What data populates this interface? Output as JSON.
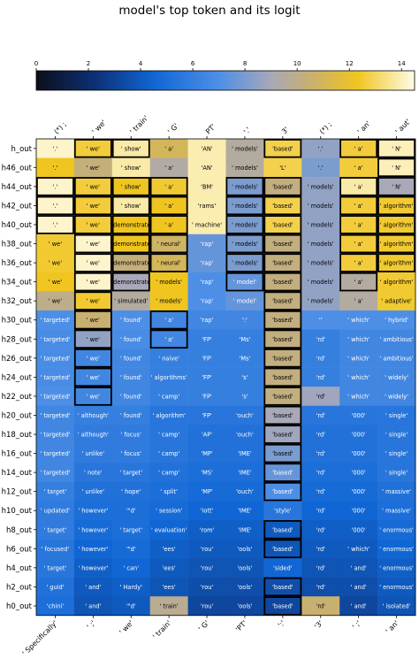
{
  "chart_data": {
    "type": "heatmap",
    "title": "model's top token and its logit",
    "colorbar": {
      "min": 0,
      "max": 14.5,
      "ticks": [
        0,
        2,
        4,
        6,
        8,
        10,
        12,
        14
      ],
      "colors": [
        "#0c0f1a",
        "#0d2f73",
        "#1066d4",
        "#4d8fe6",
        "#a8a8b8",
        "#c8b070",
        "#f0c520",
        "#fffbe6"
      ],
      "stops": [
        0,
        2.2,
        4.5,
        7,
        9,
        10.5,
        12.3,
        14.5
      ]
    },
    "top_tokens": [
      "(*) ;",
      "' we'",
      "' train'",
      "' G'",
      "PT'",
      "'.'",
      "3'",
      "(*) ;",
      "' an'",
      "' aut'"
    ],
    "bottom_tokens": [
      "' Specifically'",
      "' ;'",
      "' we'",
      "' train'",
      "' G'",
      "'PT'",
      "':'",
      "'3'",
      "' ;'",
      "' an'"
    ],
    "rows": [
      {
        "label": "h_out",
        "tokens": [
          "'.'",
          "' we'",
          "' show'",
          "' a'",
          "'AN'",
          "' models'",
          "'based'",
          "'.'",
          "' a'",
          "' N'"
        ],
        "values": [
          14.2,
          12.6,
          13.8,
          11.0,
          13.9,
          9.5,
          12.8,
          8.5,
          12.6,
          14.0
        ],
        "boxed": [
          false,
          true,
          true,
          false,
          false,
          false,
          true,
          false,
          true,
          true
        ]
      },
      {
        "label": "h46_out",
        "tokens": [
          "'.'",
          "' we'",
          "' show'",
          "' a'",
          "'AN'",
          "' models'",
          "'L'",
          "'.'",
          "' a'",
          "' N'"
        ],
        "values": [
          12.3,
          10.3,
          13.8,
          9.4,
          13.9,
          9.5,
          12.8,
          8.0,
          12.6,
          14.0
        ],
        "boxed": [
          false,
          false,
          false,
          false,
          false,
          false,
          false,
          false,
          false,
          true
        ]
      },
      {
        "label": "h44_out",
        "tokens": [
          "'.'",
          "' we'",
          "' show'",
          "' a'",
          "'BM'",
          "' models'",
          "'based'",
          "' models'",
          "' a'",
          "' N'"
        ],
        "values": [
          14.2,
          12.6,
          12.3,
          12.5,
          13.9,
          8.0,
          10.2,
          8.5,
          13.8,
          9.0
        ],
        "boxed": [
          true,
          true,
          true,
          true,
          false,
          true,
          true,
          false,
          true,
          true
        ]
      },
      {
        "label": "h42_out",
        "tokens": [
          "'.'",
          "' we'",
          "' show'",
          "' a'",
          "'rams'",
          "' models'",
          "'based'",
          "' models'",
          "' a'",
          "' algorithm'"
        ],
        "values": [
          14.2,
          12.6,
          13.8,
          12.3,
          13.9,
          8.0,
          12.8,
          8.5,
          12.6,
          12.5
        ],
        "boxed": [
          true,
          true,
          true,
          true,
          false,
          true,
          true,
          false,
          true,
          true
        ]
      },
      {
        "label": "h40_out",
        "tokens": [
          "'.'",
          "' we'",
          "' demonstrate'",
          "' a'",
          "' machine'",
          "' models'",
          "'based'",
          "' models'",
          "' a'",
          "' algorithm'"
        ],
        "values": [
          14.2,
          12.6,
          12.3,
          12.3,
          13.9,
          8.0,
          12.8,
          8.5,
          12.6,
          12.5
        ],
        "boxed": [
          true,
          true,
          true,
          true,
          false,
          true,
          true,
          false,
          true,
          true
        ]
      },
      {
        "label": "h38_out",
        "tokens": [
          "' we'",
          "' we'",
          "' demonstrate'",
          "' neural'",
          "'rap'",
          "' models'",
          "'based'",
          "' models'",
          "' a'",
          "' algorithm'"
        ],
        "values": [
          12.5,
          14.2,
          12.3,
          10.8,
          7.5,
          8.0,
          10.2,
          8.5,
          12.6,
          12.5
        ],
        "boxed": [
          false,
          true,
          true,
          true,
          false,
          true,
          true,
          false,
          true,
          true
        ]
      },
      {
        "label": "h36_out",
        "tokens": [
          "' we'",
          "' we'",
          "' demonstrate'",
          "' neural'",
          "'rap'",
          "' models'",
          "'based'",
          "' models'",
          "' a'",
          "' algorithm'"
        ],
        "values": [
          12.5,
          14.2,
          10.3,
          11.0,
          7.5,
          8.0,
          10.2,
          8.5,
          12.6,
          12.5
        ],
        "boxed": [
          false,
          true,
          true,
          true,
          false,
          true,
          true,
          false,
          true,
          true
        ]
      },
      {
        "label": "h34_out",
        "tokens": [
          "' we'",
          "' we'",
          "' demonstrate'",
          "' models'",
          "'rap'",
          "' model'",
          "'based'",
          "' models'",
          "' a'",
          "' algorithm'"
        ],
        "values": [
          12.3,
          14.2,
          9.0,
          12.3,
          7.0,
          7.5,
          10.2,
          8.5,
          9.5,
          12.5
        ],
        "boxed": [
          false,
          true,
          true,
          false,
          false,
          true,
          true,
          false,
          true,
          false
        ]
      },
      {
        "label": "h32_out",
        "tokens": [
          "' we'",
          "' we'",
          "' simulated'",
          "' models'",
          "'rap'",
          "' model'",
          "'based'",
          "' models'",
          "' a'",
          "' adaptive'"
        ],
        "values": [
          10.0,
          12.5,
          9.5,
          12.3,
          7.0,
          7.5,
          10.2,
          8.5,
          9.5,
          12.5
        ],
        "boxed": [
          false,
          true,
          false,
          false,
          false,
          false,
          true,
          false,
          false,
          false
        ]
      },
      {
        "label": "h30_out",
        "tokens": [
          "' targeted'",
          "' we'",
          "' found'",
          "' a'",
          "'rap'",
          "':'",
          "'based'",
          "''",
          "' which'",
          "' hybrid'"
        ],
        "values": [
          7.0,
          10.5,
          7.0,
          6.5,
          6.5,
          6.5,
          10.2,
          7.0,
          7.0,
          7.0
        ],
        "boxed": [
          false,
          true,
          false,
          true,
          false,
          false,
          true,
          false,
          false,
          false
        ]
      },
      {
        "label": "h28_out",
        "tokens": [
          "' targeted'",
          "' we'",
          "' found'",
          "' a'",
          "'FP'",
          "'Ms'",
          "'based'",
          "'rd'",
          "' which'",
          "' ambitious'"
        ],
        "values": [
          6.8,
          8.5,
          6.8,
          6.5,
          6.0,
          6.0,
          10.2,
          6.0,
          6.5,
          6.5
        ],
        "boxed": [
          false,
          true,
          false,
          true,
          false,
          false,
          true,
          false,
          false,
          false
        ]
      },
      {
        "label": "h26_out",
        "tokens": [
          "' targeted'",
          "' we'",
          "' found'",
          "' naive'",
          "'FP'",
          "'Ms'",
          "'based'",
          "'rd'",
          "' which'",
          "' ambitious'"
        ],
        "values": [
          6.8,
          6.5,
          6.5,
          6.0,
          6.0,
          6.0,
          10.2,
          6.0,
          6.5,
          6.5
        ],
        "boxed": [
          false,
          true,
          false,
          false,
          false,
          false,
          true,
          false,
          false,
          false
        ]
      },
      {
        "label": "h24_out",
        "tokens": [
          "' targeted'",
          "' we'",
          "' found'",
          "' algorithms'",
          "'FP'",
          "'s'",
          "'based'",
          "'rd'",
          "' which'",
          "' widely'"
        ],
        "values": [
          6.8,
          6.5,
          6.5,
          6.0,
          6.0,
          6.0,
          10.2,
          6.0,
          6.5,
          6.5
        ],
        "boxed": [
          false,
          true,
          false,
          false,
          false,
          false,
          true,
          false,
          false,
          false
        ]
      },
      {
        "label": "h22_out",
        "tokens": [
          "' targeted'",
          "' we'",
          "' found'",
          "' camp'",
          "'FP'",
          "'s'",
          "'based'",
          "'rd'",
          "' which'",
          "' widely'"
        ],
        "values": [
          7.0,
          6.5,
          6.5,
          6.0,
          6.0,
          6.0,
          10.2,
          8.8,
          6.5,
          6.5
        ],
        "boxed": [
          false,
          true,
          false,
          false,
          false,
          false,
          true,
          false,
          false,
          false
        ]
      },
      {
        "label": "h20_out",
        "tokens": [
          "' targeted'",
          "' although'",
          "' found'",
          "' algorithm'",
          "'FP'",
          "'ouch'",
          "'based'",
          "'rd'",
          "'000'",
          "' single'"
        ],
        "values": [
          6.5,
          6.0,
          6.0,
          5.5,
          5.5,
          5.5,
          9.0,
          5.5,
          5.5,
          5.5
        ],
        "boxed": [
          false,
          false,
          false,
          false,
          false,
          false,
          true,
          false,
          false,
          false
        ]
      },
      {
        "label": "h18_out",
        "tokens": [
          "' targeted'",
          "' although'",
          "' focus'",
          "' camp'",
          "'AP'",
          "'ouch'",
          "'based'",
          "'rd'",
          "'000'",
          "' single'"
        ],
        "values": [
          6.5,
          5.8,
          5.8,
          5.5,
          5.2,
          5.2,
          8.8,
          5.2,
          5.2,
          5.5
        ],
        "boxed": [
          false,
          false,
          false,
          false,
          false,
          false,
          true,
          false,
          false,
          false
        ]
      },
      {
        "label": "h16_out",
        "tokens": [
          "' targeted'",
          "' unlike'",
          "' focus'",
          "' camp'",
          "'MP'",
          "'IME'",
          "'based'",
          "'rd'",
          "'000'",
          "' single'"
        ],
        "values": [
          6.5,
          5.8,
          5.8,
          5.5,
          5.2,
          5.2,
          8.0,
          5.2,
          5.2,
          5.5
        ],
        "boxed": [
          false,
          false,
          false,
          false,
          false,
          false,
          true,
          false,
          false,
          false
        ]
      },
      {
        "label": "h14_out",
        "tokens": [
          "' targeted'",
          "' note'",
          "' target'",
          "' camp'",
          "'MS'",
          "'IME'",
          "'based'",
          "'rd'",
          "'000'",
          "' single'"
        ],
        "values": [
          6.5,
          5.5,
          5.5,
          5.2,
          5.0,
          5.0,
          7.5,
          5.0,
          5.0,
          5.5
        ],
        "boxed": [
          false,
          false,
          false,
          false,
          false,
          false,
          true,
          false,
          false,
          false
        ]
      },
      {
        "label": "h12_out",
        "tokens": [
          "' target'",
          "' unlike'",
          "' hope'",
          "' split'",
          "'MP'",
          "'ouch'",
          "'based'",
          "'rd'",
          "'000'",
          "' massive'"
        ],
        "values": [
          6.0,
          5.2,
          5.2,
          5.0,
          4.8,
          4.8,
          7.0,
          4.8,
          4.8,
          5.2
        ],
        "boxed": [
          false,
          false,
          false,
          false,
          false,
          false,
          true,
          false,
          false,
          false
        ]
      },
      {
        "label": "h10_out",
        "tokens": [
          "' updated'",
          "' however'",
          "'\"d'",
          "' session'",
          "'iott'",
          "'IME'",
          "'style'",
          "'rd'",
          "'000'",
          "' massive'"
        ],
        "values": [
          5.8,
          5.0,
          5.0,
          4.8,
          4.5,
          4.5,
          5.5,
          4.5,
          4.5,
          5.0
        ],
        "boxed": [
          false,
          false,
          false,
          false,
          false,
          false,
          false,
          false,
          false,
          false
        ]
      },
      {
        "label": "h8_out",
        "tokens": [
          "' target'",
          "' however'",
          "' target'",
          "' evaluation'",
          "'rom'",
          "'IME'",
          "'based'",
          "'rd'",
          "'000'",
          "' enormous'"
        ],
        "values": [
          5.8,
          4.8,
          5.0,
          4.5,
          4.2,
          4.2,
          4.0,
          4.2,
          4.2,
          4.8
        ],
        "boxed": [
          false,
          false,
          false,
          false,
          false,
          false,
          true,
          false,
          false,
          false
        ]
      },
      {
        "label": "h6_out",
        "tokens": [
          "' focused'",
          "' however'",
          "'\"d'",
          "'ees'",
          "'rou'",
          "'ools'",
          "'based'",
          "'rd'",
          "' which'",
          "' enormous'"
        ],
        "values": [
          5.5,
          4.5,
          4.8,
          4.2,
          4.0,
          4.0,
          3.8,
          4.0,
          4.0,
          4.5
        ],
        "boxed": [
          false,
          false,
          false,
          false,
          false,
          false,
          true,
          false,
          false,
          false
        ]
      },
      {
        "label": "h4_out",
        "tokens": [
          "' target'",
          "' however'",
          "' can'",
          "'ees'",
          "'rou'",
          "'ools'",
          "'sided'",
          "'rd'",
          "' and'",
          "' enormous'"
        ],
        "values": [
          5.5,
          4.2,
          4.5,
          4.0,
          3.8,
          3.8,
          4.5,
          3.8,
          3.8,
          4.2
        ],
        "boxed": [
          false,
          false,
          false,
          false,
          false,
          false,
          false,
          false,
          false,
          false
        ]
      },
      {
        "label": "h2_out",
        "tokens": [
          "' guid'",
          "' and'",
          "' Hardy'",
          "'ees'",
          "'rou'",
          "'ools'",
          "'based'",
          "'rd'",
          "' and'",
          "' enormous'"
        ],
        "values": [
          5.2,
          4.0,
          4.2,
          3.8,
          3.5,
          3.5,
          3.5,
          3.5,
          3.5,
          4.0
        ],
        "boxed": [
          false,
          false,
          false,
          false,
          false,
          false,
          true,
          false,
          false,
          false
        ]
      },
      {
        "label": "h0_out",
        "tokens": [
          "'chini'",
          "' and'",
          "'\"d'",
          "' train'",
          "'rou'",
          "'ools'",
          "'based'",
          "'rd'",
          "' and'",
          "' isolated'"
        ],
        "values": [
          5.0,
          3.8,
          4.0,
          9.8,
          3.2,
          3.2,
          3.2,
          10.5,
          3.2,
          3.8
        ],
        "boxed": [
          false,
          false,
          false,
          false,
          false,
          false,
          true,
          false,
          false,
          false
        ]
      }
    ]
  }
}
